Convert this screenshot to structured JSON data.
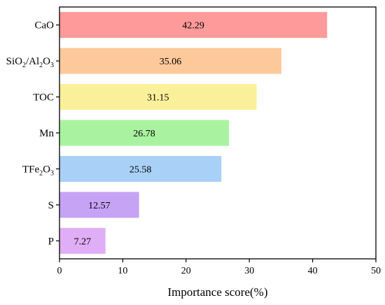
{
  "chart_data": {
    "type": "bar",
    "orientation": "horizontal",
    "categories": [
      {
        "parts": [
          {
            "t": "CaO"
          }
        ]
      },
      {
        "parts": [
          {
            "t": "SiO"
          },
          {
            "t": "2",
            "sub": true
          },
          {
            "t": "/Al"
          },
          {
            "t": "2",
            "sub": true
          },
          {
            "t": "O"
          },
          {
            "t": "3",
            "sub": true
          }
        ]
      },
      {
        "parts": [
          {
            "t": "TOC"
          }
        ]
      },
      {
        "parts": [
          {
            "t": "Mn"
          }
        ]
      },
      {
        "parts": [
          {
            "t": "TFe"
          },
          {
            "t": "2",
            "sub": true
          },
          {
            "t": "O"
          },
          {
            "t": "3",
            "sub": true
          }
        ]
      },
      {
        "parts": [
          {
            "t": "S"
          }
        ]
      },
      {
        "parts": [
          {
            "t": "P"
          }
        ]
      }
    ],
    "values": [
      42.29,
      35.06,
      31.15,
      26.78,
      25.58,
      12.57,
      7.27
    ],
    "value_labels": [
      "42.29",
      "35.06",
      "31.15",
      "26.78",
      "25.58",
      "12.57",
      "7.27"
    ],
    "colors": [
      "#ff9a9a",
      "#fdc99a",
      "#fbf09a",
      "#a9f3a0",
      "#a9d0f6",
      "#c6a3f4",
      "#e0aef6"
    ],
    "xlabel": "Importance score(%)",
    "xlim": [
      0,
      50
    ],
    "xticks": [
      "0",
      "10",
      "20",
      "30",
      "40",
      "50"
    ],
    "grid": false
  }
}
